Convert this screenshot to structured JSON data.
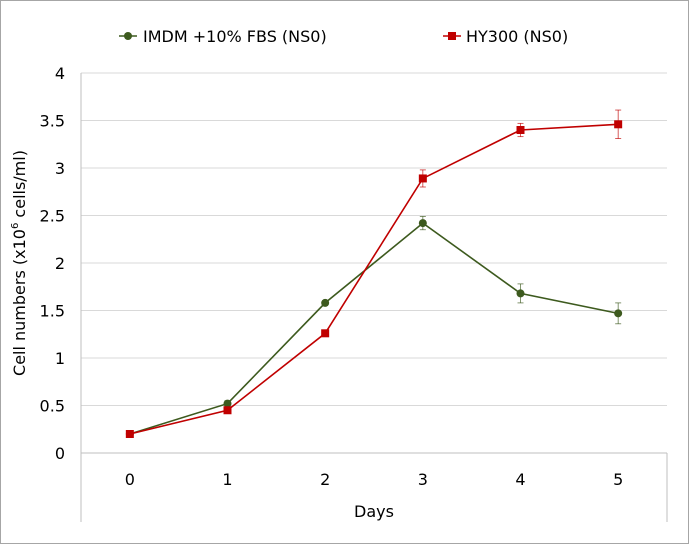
{
  "chart_data": {
    "type": "line",
    "title": "",
    "xlabel": "Days",
    "ylabel_main": "Cell numbers (x10",
    "ylabel_sup": "6",
    "ylabel_tail": " cells/ml)",
    "categories": [
      "0",
      "1",
      "2",
      "3",
      "4",
      "5"
    ],
    "x": [
      0,
      1,
      2,
      3,
      4,
      5
    ],
    "ylim": [
      0,
      4
    ],
    "yticks": [
      0,
      0.5,
      1,
      1.5,
      2,
      2.5,
      3,
      3.5,
      4
    ],
    "ytick_labels": [
      "0",
      "0.5",
      "1",
      "1.5",
      "2",
      "2.5",
      "3",
      "3.5",
      "4"
    ],
    "grid": true,
    "legend_position": "top",
    "series": [
      {
        "name": "IMDM +10% FBS (NS0)",
        "color": "#3d5a1e",
        "marker": "circle",
        "values": [
          0.2,
          0.52,
          1.58,
          2.42,
          1.68,
          1.47
        ],
        "errors": [
          0.0,
          0.03,
          0.02,
          0.07,
          0.1,
          0.11
        ]
      },
      {
        "name": "HY300 (NS0)",
        "color": "#c00000",
        "marker": "square",
        "values": [
          0.2,
          0.45,
          1.26,
          2.89,
          3.4,
          3.46
        ],
        "errors": [
          0.0,
          0.02,
          0.02,
          0.09,
          0.07,
          0.15
        ]
      }
    ]
  }
}
